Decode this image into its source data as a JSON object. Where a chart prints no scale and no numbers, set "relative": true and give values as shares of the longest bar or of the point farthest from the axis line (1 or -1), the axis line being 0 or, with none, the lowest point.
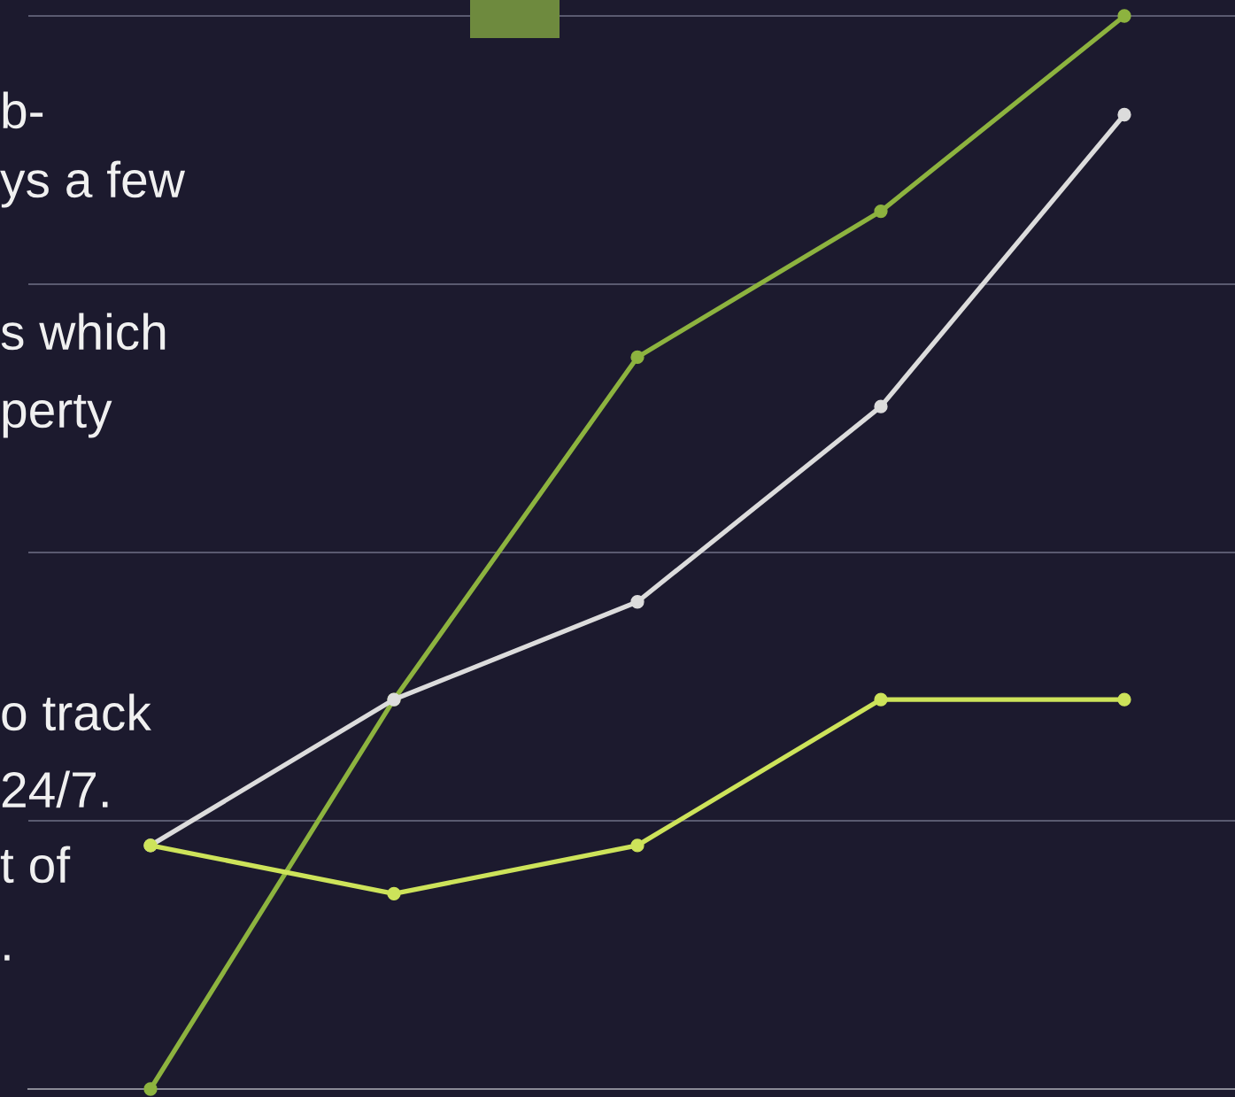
{
  "chart_data": {
    "type": "line",
    "relative": true,
    "categories": [
      null,
      null,
      null,
      null,
      null
    ],
    "series": [
      {
        "color": "#8db33f",
        "values": [
          0,
          0.363,
          0.682,
          0.818,
          1
        ]
      },
      {
        "color": "#dcdcdc",
        "values": [
          0.227,
          0.363,
          0.454,
          0.636,
          0.908
        ]
      },
      {
        "color": "#cde35a",
        "values": [
          0.227,
          0.182,
          0.227,
          0.363,
          0.363
        ]
      }
    ],
    "annotations": [
      "b-",
      "ys a few",
      "s which",
      "perty",
      "o track",
      "24/7.",
      "t of",
      "."
    ],
    "grid": "y",
    "marker": "circle",
    "line_style": "solid"
  }
}
